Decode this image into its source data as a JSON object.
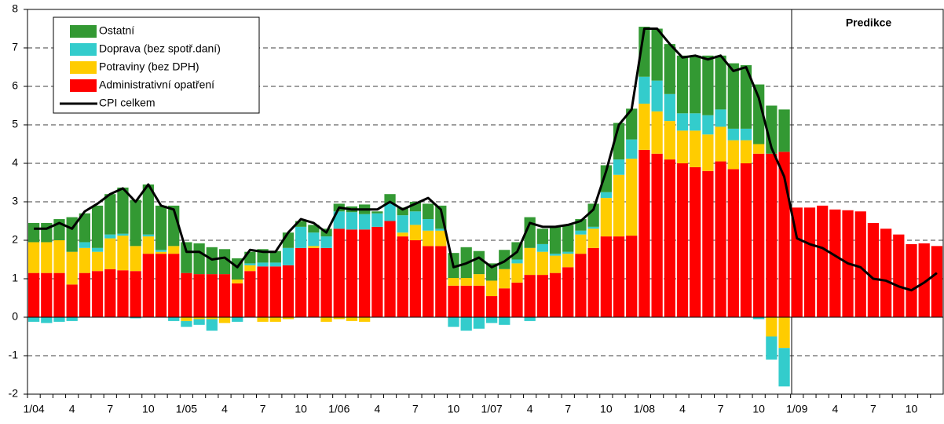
{
  "chart_data": {
    "type": "bar",
    "annotation": "Predikce",
    "categories": [
      "1/04",
      null,
      null,
      "4",
      null,
      null,
      "7",
      null,
      null,
      "10",
      null,
      null,
      "1/05",
      null,
      null,
      "4",
      null,
      null,
      "7",
      null,
      null,
      "10",
      null,
      null,
      "1/06",
      null,
      null,
      "4",
      null,
      null,
      "7",
      null,
      null,
      "10",
      null,
      null,
      "1/07",
      null,
      null,
      "4",
      null,
      null,
      "7",
      null,
      null,
      "10",
      null,
      null,
      "1/08",
      null,
      null,
      "4",
      null,
      null,
      "7",
      null,
      null,
      "10",
      null,
      null,
      "1/09",
      null,
      null,
      "4",
      null,
      null,
      "7",
      null,
      null,
      "10",
      null,
      null
    ],
    "ylim": [
      -2,
      8
    ],
    "yticks": [
      -2,
      -1,
      0,
      1,
      2,
      3,
      4,
      5,
      6,
      7,
      8
    ],
    "grid": true,
    "series": [
      {
        "name": "Ostatní",
        "color": "#339933",
        "values": [
          0.5,
          0.5,
          0.55,
          0.9,
          0.75,
          1.1,
          1.05,
          1.2,
          1.2,
          1.3,
          1.15,
          1.05,
          0.8,
          0.8,
          0.7,
          0.65,
          0.55,
          0.3,
          0.35,
          0.3,
          0.4,
          0.15,
          0.2,
          0.2,
          0.2,
          0.15,
          0.25,
          0.05,
          0.25,
          0.2,
          0.25,
          0.4,
          0.6,
          0.65,
          0.8,
          0.6,
          0.45,
          0.5,
          0.45,
          0.8,
          0.4,
          0.7,
          0.7,
          0.3,
          0.6,
          0.7,
          0.95,
          0.8,
          1.3,
          1.35,
          1.3,
          1.5,
          1.5,
          1.55,
          1.4,
          1.7,
          1.65,
          1.55,
          1.25,
          1.1,
          0,
          0,
          0,
          0,
          0,
          0,
          0,
          0,
          0,
          0,
          0,
          0
        ]
      },
      {
        "name": "Doprava (bez spotř.daní)",
        "color": "#33cccc",
        "values": [
          -0.12,
          -0.15,
          -0.12,
          -0.1,
          0.15,
          0.1,
          0.1,
          0.05,
          -0.03,
          0.05,
          0.05,
          -0.1,
          -0.15,
          -0.15,
          -0.3,
          0,
          -0.12,
          0.05,
          0.1,
          0.1,
          0.45,
          0.55,
          0.35,
          0.3,
          0.45,
          0.45,
          0.4,
          0.35,
          0.45,
          0.45,
          0.35,
          0.3,
          0.05,
          -0.25,
          -0.35,
          -0.3,
          -0.15,
          -0.2,
          0.1,
          -0.1,
          0.2,
          0.05,
          0.05,
          0.1,
          0.05,
          0.15,
          0.4,
          0.5,
          0.7,
          0.8,
          0.7,
          0.45,
          0.45,
          0.5,
          0.45,
          0.3,
          0.3,
          -0.05,
          -0.6,
          -1.0,
          0,
          0,
          0,
          0,
          0,
          0,
          0,
          0,
          0,
          0,
          0,
          0
        ]
      },
      {
        "name": "Potraviny (bez DPH)",
        "color": "#ffcc00",
        "values": [
          0.8,
          0.8,
          0.85,
          0.85,
          0.65,
          0.5,
          0.8,
          0.9,
          0.65,
          0.45,
          0.05,
          0.2,
          -0.1,
          -0.05,
          -0.05,
          -0.15,
          0.1,
          0.15,
          -0.12,
          -0.12,
          -0.05,
          0,
          0.05,
          -0.12,
          -0.05,
          -0.1,
          -0.12,
          0,
          0,
          0.1,
          0.4,
          0.4,
          0.4,
          0.2,
          0.2,
          0.3,
          0.4,
          0.5,
          0.5,
          0.7,
          0.6,
          0.45,
          0.35,
          0.5,
          0.5,
          1.0,
          1.6,
          2.0,
          1.2,
          1.1,
          1.0,
          0.85,
          0.95,
          0.95,
          0.9,
          0.75,
          0.6,
          0.25,
          -0.5,
          -0.8,
          0,
          0,
          0,
          0,
          0,
          0,
          0,
          0,
          0,
          0,
          0,
          0
        ]
      },
      {
        "name": "Administrativní opatření",
        "color": "#ff0000",
        "values": [
          1.15,
          1.15,
          1.15,
          0.85,
          1.15,
          1.2,
          1.25,
          1.22,
          1.2,
          1.65,
          1.65,
          1.65,
          1.15,
          1.12,
          1.12,
          1.12,
          0.88,
          1.2,
          1.32,
          1.32,
          1.35,
          1.8,
          1.8,
          1.8,
          2.3,
          2.28,
          2.28,
          2.35,
          2.5,
          2.1,
          2.0,
          1.85,
          1.85,
          0.82,
          0.82,
          0.82,
          0.55,
          0.75,
          0.9,
          1.1,
          1.1,
          1.15,
          1.3,
          1.65,
          1.8,
          2.1,
          2.1,
          2.12,
          4.35,
          4.25,
          4.1,
          4.0,
          3.9,
          3.8,
          4.05,
          3.85,
          4.0,
          4.25,
          4.25,
          4.3,
          2.85,
          2.85,
          2.9,
          2.8,
          2.78,
          2.75,
          2.45,
          2.3,
          2.15,
          1.9,
          1.92,
          1.85
        ]
      },
      {
        "name": "CPI celkem",
        "color": "#000000",
        "type": "line",
        "values": [
          2.3,
          2.3,
          2.45,
          2.3,
          2.75,
          2.95,
          3.2,
          3.35,
          3.0,
          3.45,
          2.9,
          2.8,
          1.7,
          1.7,
          1.5,
          1.55,
          1.3,
          1.75,
          1.7,
          1.7,
          2.2,
          2.55,
          2.45,
          2.2,
          2.85,
          2.8,
          2.8,
          2.8,
          3.0,
          2.8,
          2.95,
          3.1,
          2.8,
          1.3,
          1.4,
          1.55,
          1.3,
          1.45,
          1.7,
          2.45,
          2.35,
          2.35,
          2.4,
          2.5,
          2.8,
          3.8,
          5.0,
          5.4,
          7.5,
          7.5,
          7.1,
          6.75,
          6.8,
          6.7,
          6.8,
          6.4,
          6.5,
          5.7,
          4.4,
          3.65,
          2.05,
          1.9,
          1.8,
          1.6,
          1.4,
          1.3,
          1.0,
          0.95,
          0.8,
          0.7,
          0.9,
          1.15
        ]
      }
    ]
  }
}
